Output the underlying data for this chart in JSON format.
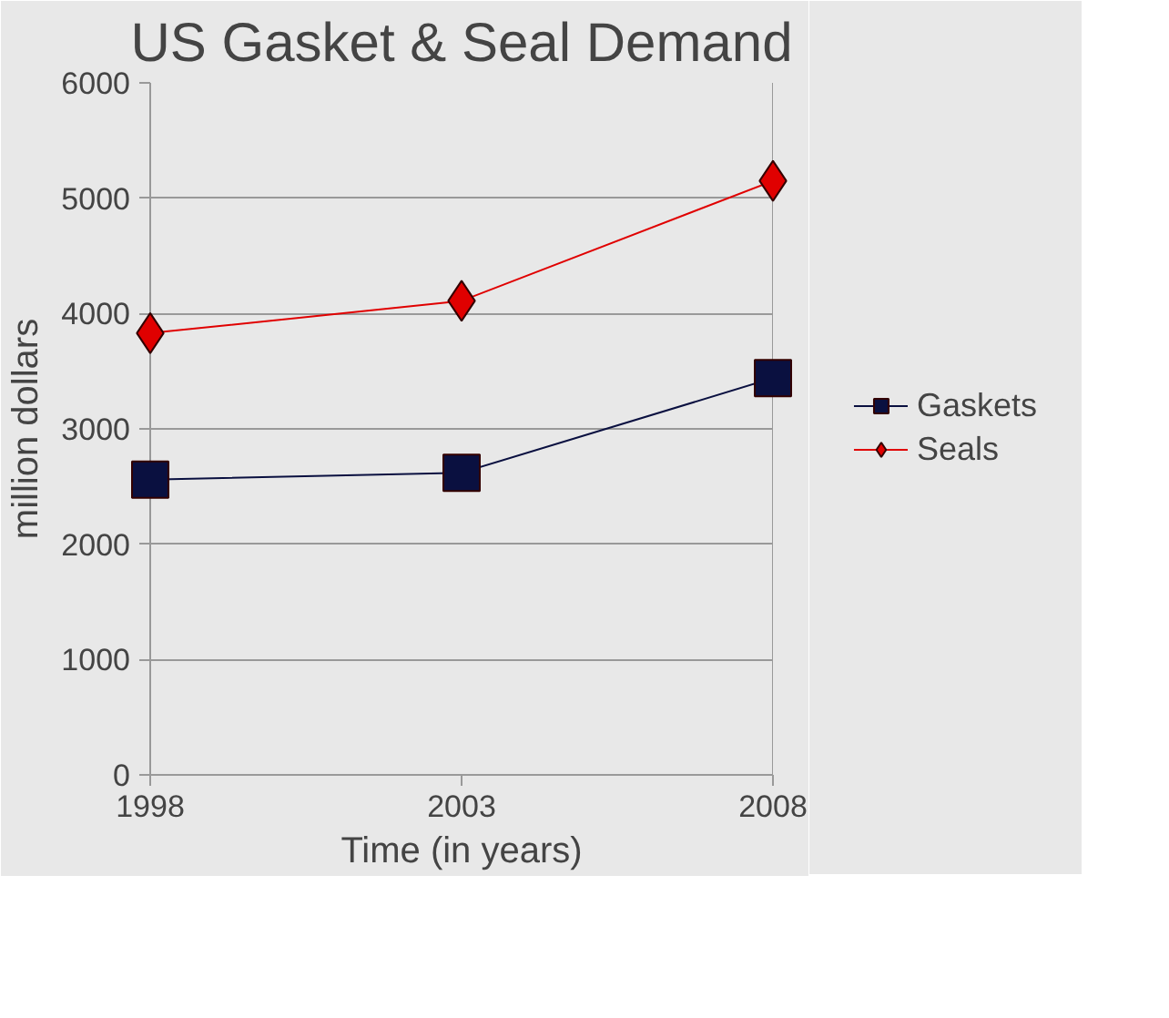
{
  "chart_data": {
    "type": "line",
    "title": "US Gasket & Seal Demand",
    "xlabel": "Time (in years)",
    "ylabel": "million dollars",
    "x": [
      1998,
      2003,
      2008
    ],
    "xlim": [
      1998,
      2008
    ],
    "xticks": [
      1998,
      2003,
      2008
    ],
    "ylim": [
      0,
      6000
    ],
    "yticks": [
      0,
      1000,
      2000,
      3000,
      4000,
      5000,
      6000
    ],
    "series": [
      {
        "name": "Gaskets",
        "color": "#0a1040",
        "marker": "square",
        "values": [
          2560,
          2620,
          3440
        ]
      },
      {
        "name": "Seals",
        "color": "#e00000",
        "marker": "diamond",
        "values": [
          3830,
          4110,
          5150
        ]
      }
    ],
    "grid": "y",
    "legend": "right",
    "line_style": "solid"
  }
}
